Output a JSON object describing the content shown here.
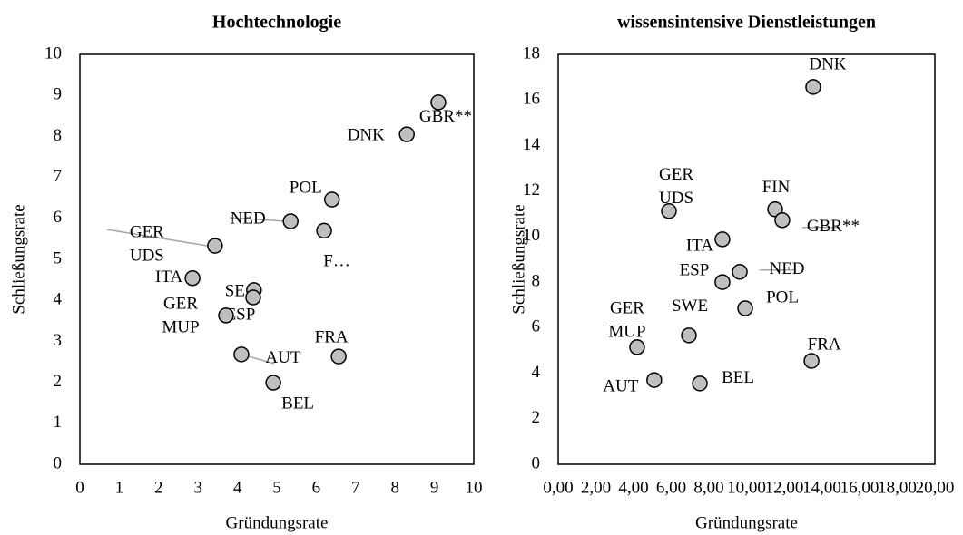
{
  "chart_data": [
    {
      "type": "scatter",
      "title": "Hochtechnologie",
      "x_label": "Gründungsrate",
      "y_label": "Schließungsrate",
      "color": "#bfbfbf",
      "xlim": [
        0,
        10
      ],
      "ylim": [
        0,
        10
      ],
      "xticks": [
        0,
        1,
        2,
        3,
        4,
        5,
        6,
        7,
        8,
        9,
        10
      ],
      "yticks": [
        0,
        1,
        2,
        3,
        4,
        5,
        6,
        7,
        8,
        9,
        10
      ],
      "labels": [
        "DNK",
        "GBR**",
        "POL",
        "NED",
        "F…",
        [
          "GER",
          "UDS"
        ],
        "ITA",
        "SE",
        "ESP",
        [
          "GER",
          "MUP"
        ],
        "AUT",
        "FRA",
        "BEL"
      ],
      "x": [
        8.3,
        9.1,
        6.4,
        5.35,
        6.2,
        3.43,
        2.86,
        4.42,
        4.4,
        3.71,
        4.1,
        6.57,
        4.91
      ],
      "y": [
        8.05,
        8.83,
        6.46,
        5.93,
        5.7,
        5.33,
        4.54,
        4.25,
        4.07,
        3.63,
        2.68,
        2.63,
        1.99
      ]
    },
    {
      "type": "scatter",
      "title": "wissensintensive Dienstleistungen",
      "x_label": "Gründungsrate",
      "y_label": "Schließungsrate",
      "color": "#bfbfbf",
      "xlim": [
        0,
        20
      ],
      "ylim": [
        0,
        18
      ],
      "xticks": [
        {
          "value": 0,
          "label": "0,00"
        },
        {
          "value": 2,
          "label": "2,00"
        },
        {
          "value": 4,
          "label": "4,00"
        },
        {
          "value": 6,
          "label": "6,00"
        },
        {
          "value": 8,
          "label": "8,00"
        },
        {
          "value": 10,
          "label": "10,00"
        },
        {
          "value": 12,
          "label": "12,00"
        },
        {
          "value": 14,
          "label": "14,00"
        },
        {
          "value": 16,
          "label": "16,00"
        },
        {
          "value": 18,
          "label": "18,00"
        },
        {
          "value": 20,
          "label": "20,00"
        }
      ],
      "yticks": [
        0,
        2,
        4,
        6,
        8,
        10,
        12,
        14,
        16,
        18
      ],
      "labels": [
        "DNK",
        "FIN",
        [
          "GER",
          "UDS"
        ],
        "GBR**",
        "ITA",
        "NED",
        "ESP",
        "POL",
        "SWE",
        [
          "GER",
          "MUP"
        ],
        "FRA",
        "AUT",
        "BEL"
      ],
      "x": [
        13.54,
        11.52,
        5.88,
        11.9,
        8.72,
        9.64,
        8.72,
        9.93,
        6.94,
        4.19,
        13.45,
        5.1,
        7.52
      ],
      "y": [
        16.57,
        11.2,
        11.12,
        10.72,
        9.88,
        8.45,
        8.0,
        6.85,
        5.66,
        5.14,
        4.54,
        3.7,
        3.55
      ]
    }
  ]
}
